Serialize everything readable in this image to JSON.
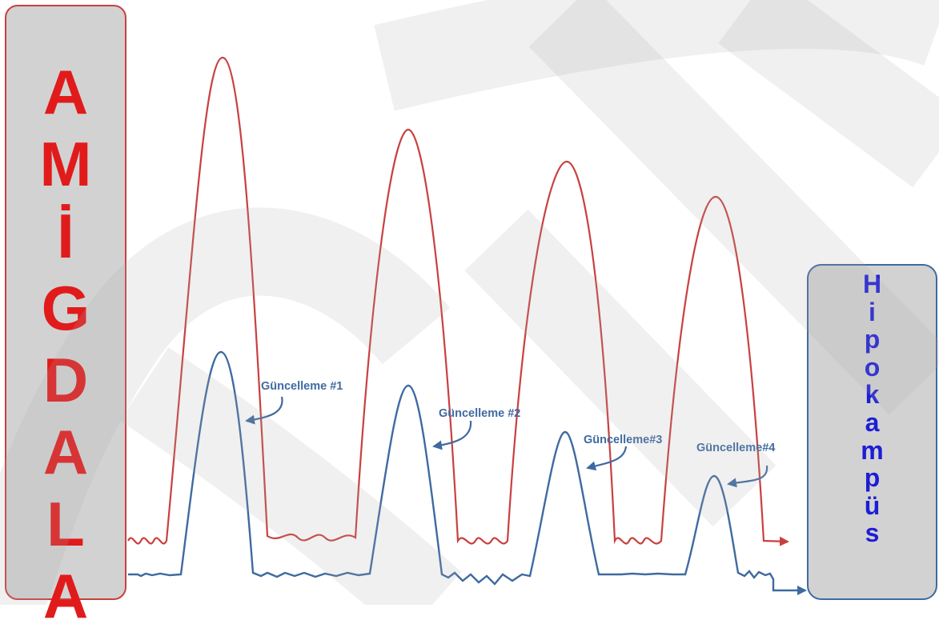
{
  "left_box": {
    "letters": [
      "A",
      "M",
      "İ",
      "G",
      "D",
      "A",
      "L",
      "A"
    ]
  },
  "right_box": {
    "letters": [
      "H",
      "i",
      "p",
      "o",
      "k",
      "a",
      "m",
      "p",
      "ü",
      "s"
    ]
  },
  "colors": {
    "red_trace": "#c9403f",
    "blue_trace": "#3f6aa0",
    "left_text": "#e11b1b",
    "right_text": "#1d1dd6",
    "box_fill": "#d2d2d2"
  },
  "labels": [
    "Güncelleme #1",
    "Güncelleme #2",
    "Güncelleme#3",
    "Güncelleme#4"
  ]
}
